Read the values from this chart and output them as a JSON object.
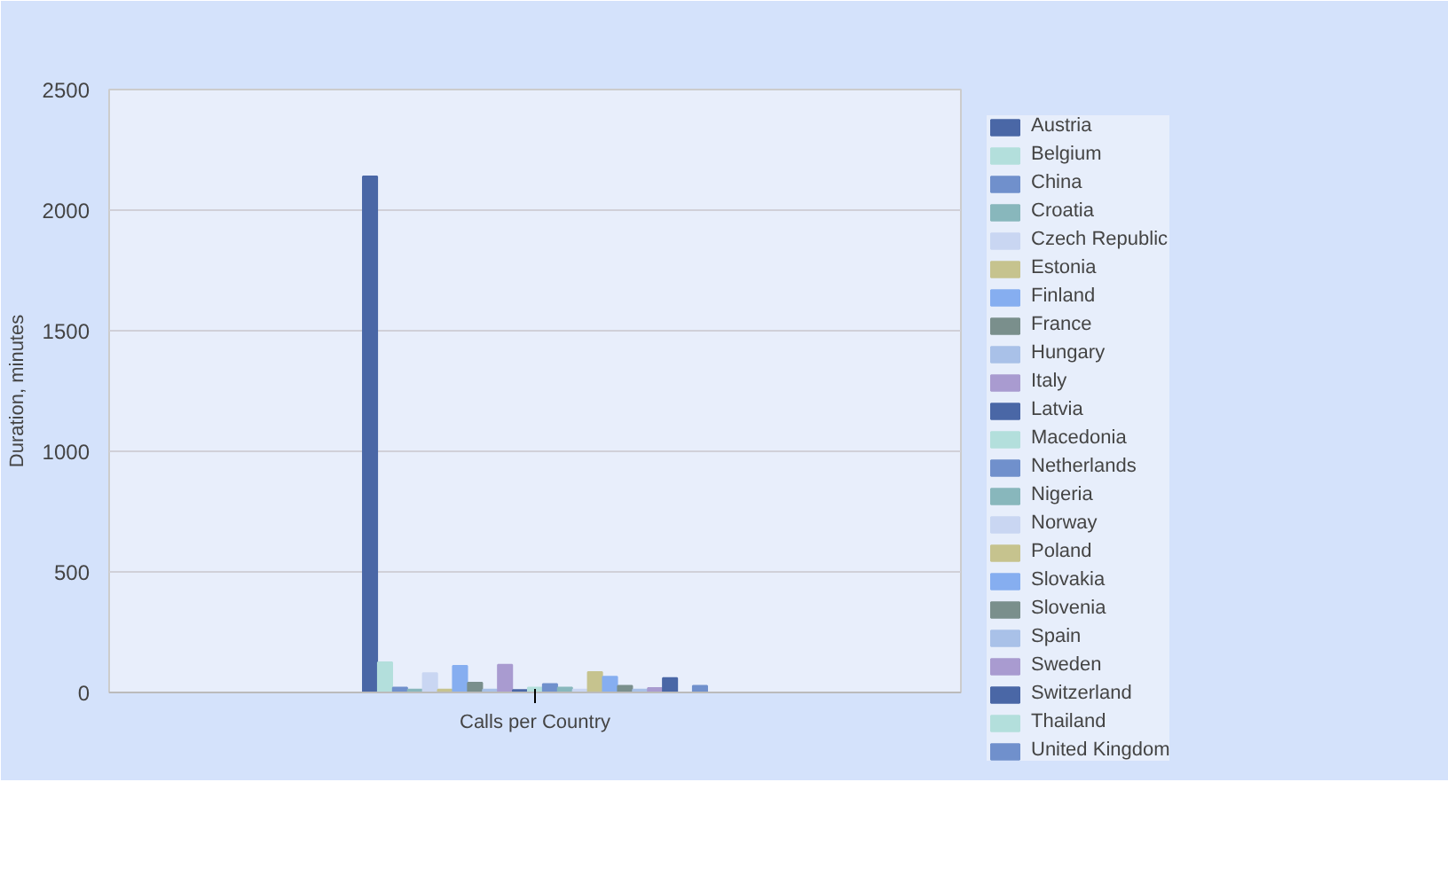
{
  "chart_data": {
    "type": "bar",
    "xlabel": "Calls per Country",
    "ylabel": "Duration, minutes",
    "categories": [
      null
    ],
    "ylim": [
      0,
      2500
    ],
    "yticks": [
      0,
      500,
      1000,
      1500,
      2000,
      2500
    ],
    "grid": "y",
    "legend": "right",
    "series": [
      {
        "name": "Austria",
        "color": "#4a67a6",
        "values": [
          2140
        ]
      },
      {
        "name": "Belgium",
        "color": "#b3dfdc",
        "values": [
          125
        ]
      },
      {
        "name": "China",
        "color": "#7090cc",
        "values": [
          20
        ]
      },
      {
        "name": "Croatia",
        "color": "#88b7bc",
        "values": [
          12
        ]
      },
      {
        "name": "Czech Republic",
        "color": "#c9d6f2",
        "values": [
          80
        ]
      },
      {
        "name": "Estonia",
        "color": "#c6c38e",
        "values": [
          12
        ]
      },
      {
        "name": "Finland",
        "color": "#86aef0",
        "values": [
          110
        ]
      },
      {
        "name": "France",
        "color": "#7a8f8c",
        "values": [
          40
        ]
      },
      {
        "name": "Hungary",
        "color": "#a9c1e8",
        "values": [
          12
        ]
      },
      {
        "name": "Italy",
        "color": "#a99bd0",
        "values": [
          115
        ]
      },
      {
        "name": "Latvia",
        "color": "#4a67a6",
        "values": [
          10
        ]
      },
      {
        "name": "Macedonia",
        "color": "#b3dfdc",
        "values": [
          20
        ]
      },
      {
        "name": "Netherlands",
        "color": "#7090cc",
        "values": [
          35
        ]
      },
      {
        "name": "Nigeria",
        "color": "#88b7bc",
        "values": [
          20
        ]
      },
      {
        "name": "Norway",
        "color": "#c9d6f2",
        "values": [
          12
        ]
      },
      {
        "name": "Poland",
        "color": "#c6c38e",
        "values": [
          85
        ]
      },
      {
        "name": "Slovakia",
        "color": "#86aef0",
        "values": [
          65
        ]
      },
      {
        "name": "Slovenia",
        "color": "#7a8f8c",
        "values": [
          28
        ]
      },
      {
        "name": "Spain",
        "color": "#a9c1e8",
        "values": [
          12
        ]
      },
      {
        "name": "Sweden",
        "color": "#a99bd0",
        "values": [
          18
        ]
      },
      {
        "name": "Switzerland",
        "color": "#4a67a6",
        "values": [
          60
        ]
      },
      {
        "name": "Thailand",
        "color": "#b3dfdc",
        "values": [
          null
        ]
      },
      {
        "name": "United Kingdom",
        "color": "#7090cc",
        "values": [
          28
        ]
      }
    ]
  }
}
